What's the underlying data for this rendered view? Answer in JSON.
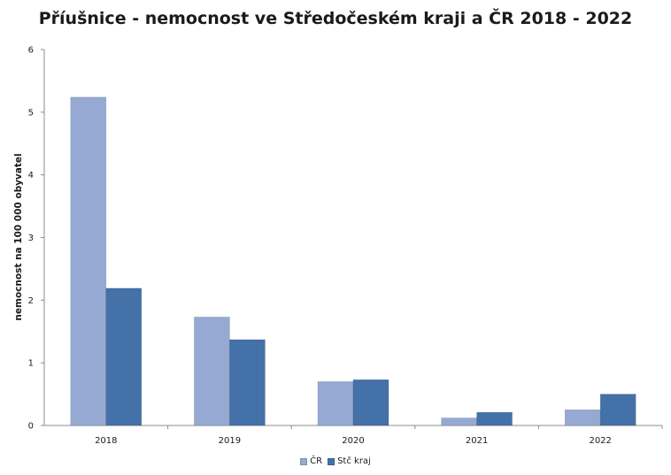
{
  "title": "Příušnice - nemocnost ve Středočeském kraji a ČR 2018 - 2022",
  "chart_data": {
    "type": "bar",
    "title": "Příušnice - nemocnost ve Středočeském kraji a ČR 2018 - 2022",
    "xlabel": "",
    "ylabel": "nemocnost na 100 000 obyvatel",
    "categories": [
      "2018",
      "2019",
      "2020",
      "2021",
      "2022"
    ],
    "series": [
      {
        "name": "ČR",
        "values": [
          5.24,
          1.73,
          0.7,
          0.12,
          0.25
        ],
        "color": "#95A9D2"
      },
      {
        "name": "Stč kraj",
        "values": [
          2.19,
          1.37,
          0.73,
          0.21,
          0.5
        ],
        "color": "#4471A8"
      }
    ],
    "ylim": [
      0,
      6
    ],
    "yticks": [
      "0",
      "1",
      "2",
      "3",
      "4",
      "5",
      "6"
    ],
    "grid": false,
    "legend_position": "bottom"
  }
}
